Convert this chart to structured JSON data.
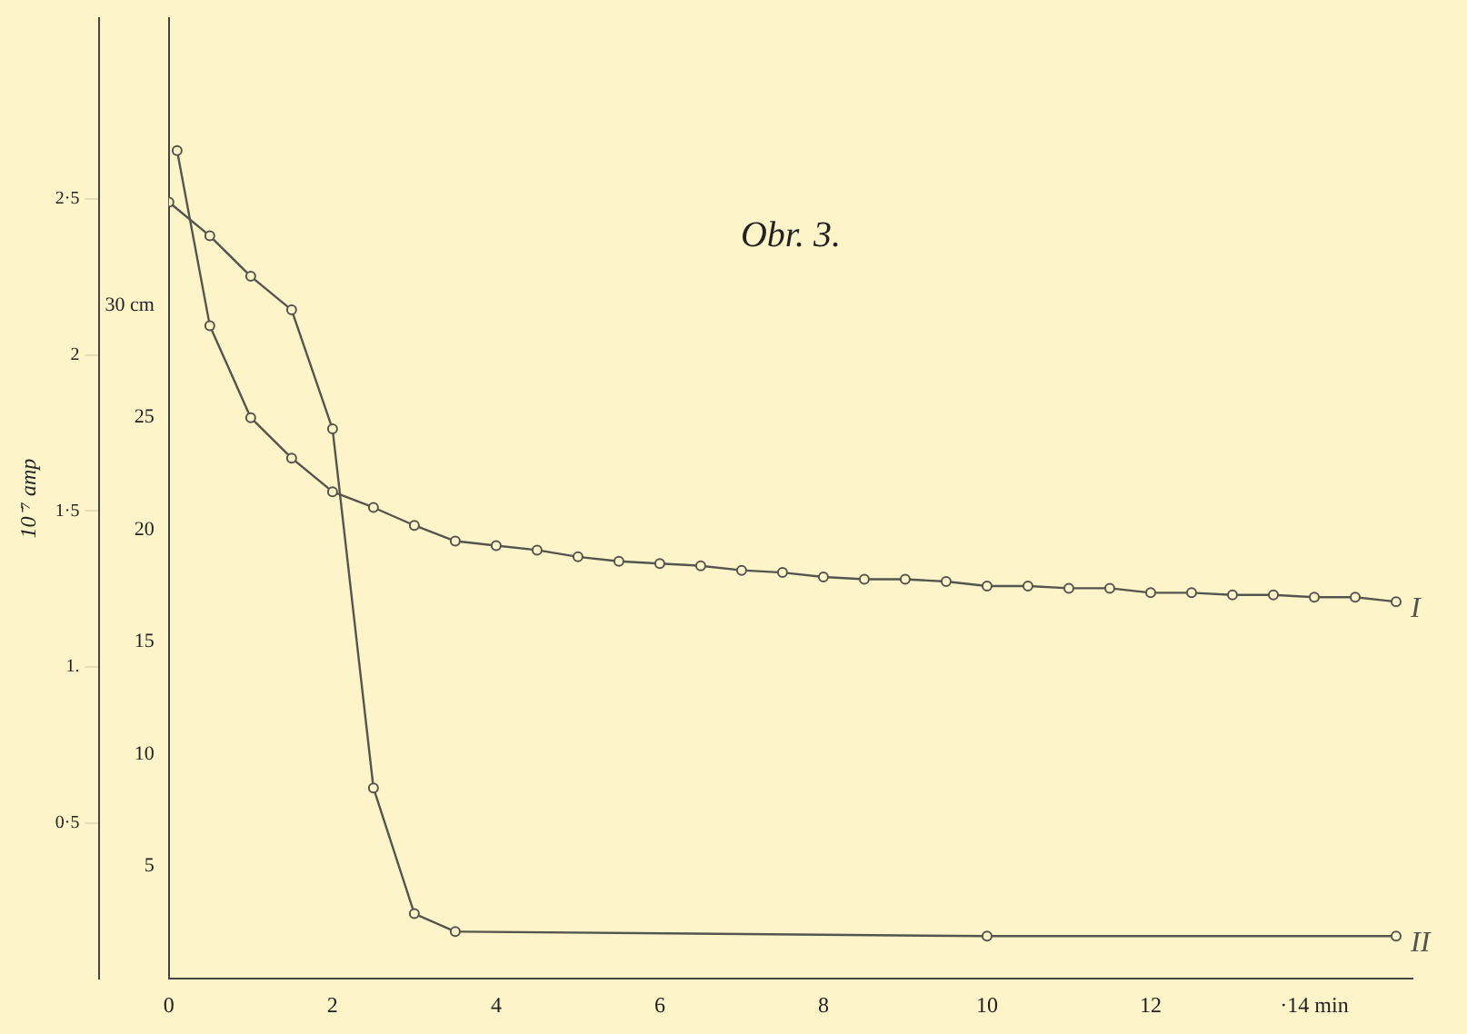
{
  "chart_data": {
    "type": "line",
    "title": "Obr. 3.",
    "xlim": [
      0,
      15.2
    ],
    "xticks": [
      0,
      2,
      4,
      6,
      8,
      10,
      12,
      {
        "value": 14,
        "label": "·14 min"
      }
    ],
    "ylim": [
      0,
      42.8
    ],
    "yticks": [
      5,
      10,
      15,
      20,
      25,
      {
        "value": 30,
        "label": "30 cm"
      }
    ],
    "y2lim": [
      0,
      3.08
    ],
    "y2ticks": [
      {
        "value": 0.5,
        "label": "0·5"
      },
      {
        "value": 1,
        "label": "1."
      },
      {
        "value": 1.5,
        "label": "1·5"
      },
      {
        "value": 2,
        "label": "2"
      },
      {
        "value": 2.5,
        "label": "2·5"
      }
    ],
    "y2label": "10⁻⁷ amp",
    "grid": false,
    "legend": false,
    "marker": "circle",
    "line_style": "solid",
    "series": [
      {
        "name": "I",
        "color": "#555550",
        "x": [
          0.1,
          0.5,
          1,
          1.5,
          2,
          2.5,
          3,
          3.5,
          4,
          4.5,
          5,
          5.5,
          6,
          6.5,
          7,
          7.5,
          8,
          8.5,
          9,
          9.5,
          10,
          10.5,
          11,
          11.5,
          12,
          12.5,
          13,
          13.5,
          14,
          14.5,
          15
        ],
        "values": [
          36.9,
          29.1,
          25.0,
          23.2,
          21.7,
          21.0,
          20.2,
          19.5,
          19.3,
          19.1,
          18.8,
          18.6,
          18.5,
          18.4,
          18.2,
          18.1,
          17.9,
          17.8,
          17.8,
          17.7,
          17.5,
          17.5,
          17.4,
          17.4,
          17.2,
          17.2,
          17.1,
          17.1,
          17.0,
          17.0,
          16.8
        ]
      },
      {
        "name": "II",
        "color": "#555550",
        "x": [
          0,
          0.5,
          1,
          1.5,
          2,
          2.5,
          3,
          3.5,
          10,
          15
        ],
        "values": [
          34.6,
          33.1,
          31.3,
          29.8,
          24.5,
          8.5,
          2.9,
          2.1,
          1.9,
          1.9
        ]
      }
    ]
  }
}
